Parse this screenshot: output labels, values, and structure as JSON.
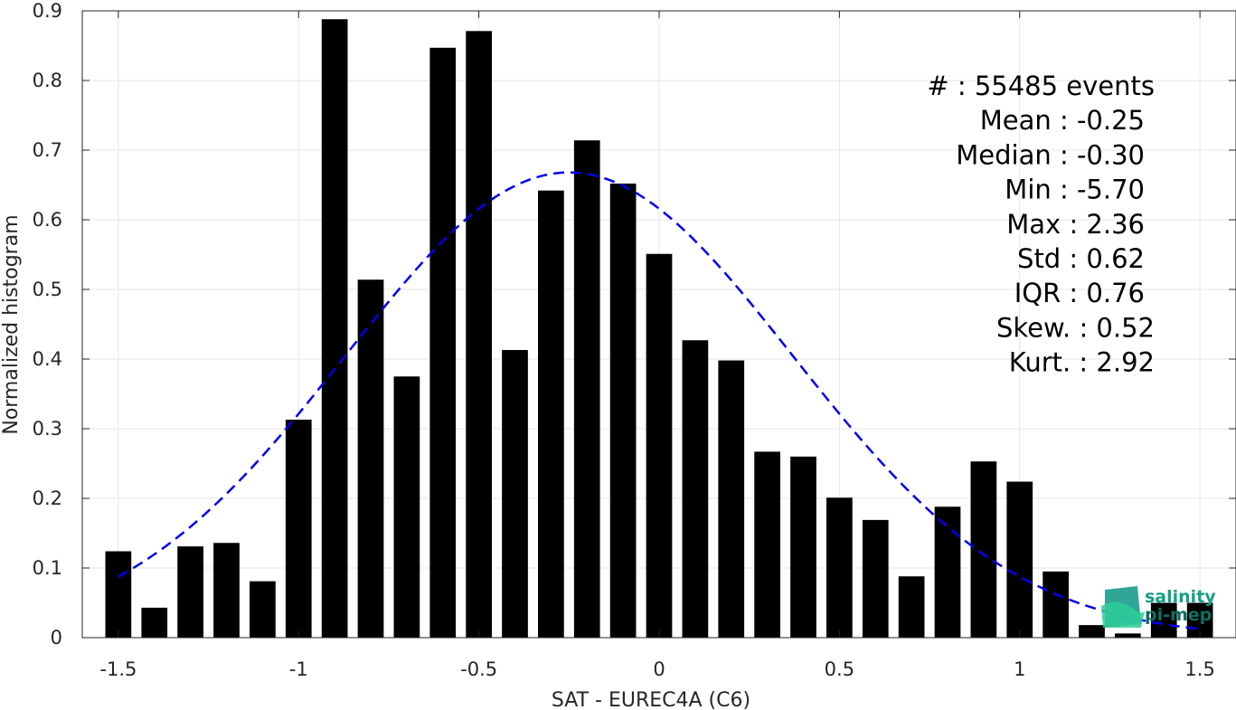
{
  "chart_data": {
    "type": "bar",
    "title": "",
    "xlabel": "SAT - EUREC4A (C6)",
    "ylabel": "Normalized histogram",
    "xlim": [
      -1.6,
      1.6
    ],
    "ylim": [
      0,
      0.9
    ],
    "grid": true,
    "bar_width": 0.072,
    "bar_color": "#000000",
    "fit_color": "#0000ee",
    "x_ticks": [
      -1.5,
      -1,
      -0.5,
      0,
      0.5,
      1,
      1.5
    ],
    "x_tick_labels": [
      "-1.5",
      "-1",
      "-0.5",
      "0",
      "0.5",
      "1",
      "1.5"
    ],
    "y_ticks": [
      0,
      0.1,
      0.2,
      0.3,
      0.4,
      0.5,
      0.6,
      0.7,
      0.8,
      0.9
    ],
    "y_tick_labels": [
      "0",
      "0.1",
      "0.2",
      "0.3",
      "0.4",
      "0.5",
      "0.6",
      "0.7",
      "0.8",
      "0.9"
    ],
    "bars": {
      "x": [
        -1.5,
        -1.4,
        -1.3,
        -1.2,
        -1.1,
        -1.0,
        -0.9,
        -0.8,
        -0.7,
        -0.6,
        -0.5,
        -0.4,
        -0.3,
        -0.2,
        -0.1,
        0.0,
        0.1,
        0.2,
        0.3,
        0.4,
        0.5,
        0.6,
        0.7,
        0.8,
        0.9,
        1.0,
        1.1,
        1.2,
        1.3,
        1.4,
        1.5
      ],
      "values": [
        0.124,
        0.043,
        0.131,
        0.136,
        0.081,
        0.313,
        0.888,
        0.514,
        0.375,
        0.847,
        0.871,
        0.413,
        0.642,
        0.714,
        0.652,
        0.551,
        0.427,
        0.398,
        0.267,
        0.26,
        0.201,
        0.169,
        0.088,
        0.188,
        0.253,
        0.224,
        0.095,
        0.018,
        0.006,
        0.05,
        0.05
      ]
    },
    "fit_curve": {
      "style": "dashed",
      "mean": -0.25,
      "std": 0.62,
      "peak": 0.668,
      "x_range": [
        -1.5,
        1.5
      ]
    },
    "annotations": [
      "#  : 55485 events",
      "Mean : -0.25",
      "Median : -0.30",
      "Min : -5.70",
      "Max : 2.36",
      "Std : 0.62",
      "IQR : 0.76",
      "Skew. : 0.52",
      "Kurt. : 2.92"
    ]
  },
  "logo": {
    "line1": "salinity",
    "line2": "pi-mep",
    "colors": [
      "#1a9c8c",
      "#16a085",
      "#2ecc9a"
    ]
  }
}
